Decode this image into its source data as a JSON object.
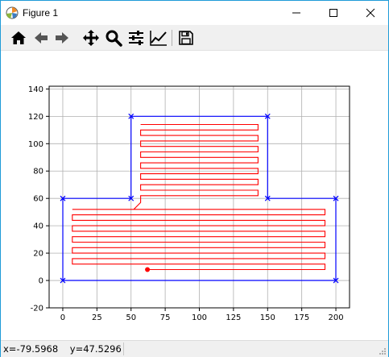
{
  "window": {
    "title": "Figure 1"
  },
  "toolbar": {
    "buttons": [
      {
        "name": "home",
        "icon": "home-icon"
      },
      {
        "name": "back",
        "icon": "arrow-left-icon"
      },
      {
        "name": "forward",
        "icon": "arrow-right-icon"
      },
      {
        "name": "pan",
        "icon": "move-icon"
      },
      {
        "name": "zoom",
        "icon": "magnifier-icon"
      },
      {
        "name": "configure-subplots",
        "icon": "sliders-icon"
      },
      {
        "name": "edit-axes",
        "icon": "chart-line-icon"
      },
      {
        "name": "save",
        "icon": "floppy-disk-icon"
      }
    ]
  },
  "status": {
    "coords": "x=-79.5968    y=47.5296"
  },
  "colors": {
    "boundary": "#0000ff",
    "path": "#ff0000",
    "grid": "#b0b0b0",
    "titlebar_accent": "#1f9bd8"
  },
  "chart_data": {
    "type": "line",
    "title": "",
    "xlabel": "",
    "ylabel": "",
    "xlim": [
      -10,
      210
    ],
    "ylim": [
      -20,
      142
    ],
    "x_ticks": [
      0,
      25,
      50,
      75,
      100,
      125,
      150,
      175,
      200
    ],
    "y_ticks": [
      -20,
      0,
      20,
      40,
      60,
      80,
      100,
      120,
      140
    ],
    "grid": true,
    "boundary": {
      "color": "blue",
      "marker": "x",
      "points": [
        [
          0,
          0
        ],
        [
          200,
          0
        ],
        [
          200,
          60
        ],
        [
          150,
          60
        ],
        [
          150,
          120
        ],
        [
          50,
          120
        ],
        [
          50,
          60
        ],
        [
          0,
          60
        ],
        [
          0,
          0
        ]
      ]
    },
    "path": {
      "color": "red",
      "start_point": [
        62,
        8
      ],
      "points": [
        [
          62,
          8
        ],
        [
          192,
          8
        ],
        [
          192,
          12
        ],
        [
          7,
          12
        ],
        [
          7,
          16
        ],
        [
          192,
          16
        ],
        [
          192,
          20
        ],
        [
          7,
          20
        ],
        [
          7,
          24
        ],
        [
          192,
          24
        ],
        [
          192,
          28
        ],
        [
          7,
          28
        ],
        [
          7,
          32
        ],
        [
          192,
          32
        ],
        [
          192,
          36
        ],
        [
          7,
          36
        ],
        [
          7,
          40
        ],
        [
          192,
          40
        ],
        [
          192,
          44
        ],
        [
          7,
          44
        ],
        [
          7,
          48
        ],
        [
          192,
          48
        ],
        [
          192,
          52
        ],
        [
          7,
          52
        ],
        [
          52,
          52
        ],
        [
          57,
          57
        ],
        [
          57,
          62
        ],
        [
          143,
          62
        ],
        [
          143,
          66
        ],
        [
          57,
          66
        ],
        [
          57,
          70
        ],
        [
          143,
          70
        ],
        [
          143,
          74
        ],
        [
          57,
          74
        ],
        [
          57,
          78
        ],
        [
          143,
          78
        ],
        [
          143,
          82
        ],
        [
          57,
          82
        ],
        [
          57,
          86
        ],
        [
          143,
          86
        ],
        [
          143,
          90
        ],
        [
          57,
          90
        ],
        [
          57,
          94
        ],
        [
          143,
          94
        ],
        [
          143,
          98
        ],
        [
          57,
          98
        ],
        [
          57,
          102
        ],
        [
          143,
          102
        ],
        [
          143,
          106
        ],
        [
          57,
          106
        ],
        [
          57,
          110
        ],
        [
          143,
          110
        ],
        [
          143,
          114
        ],
        [
          57,
          114
        ]
      ]
    }
  }
}
